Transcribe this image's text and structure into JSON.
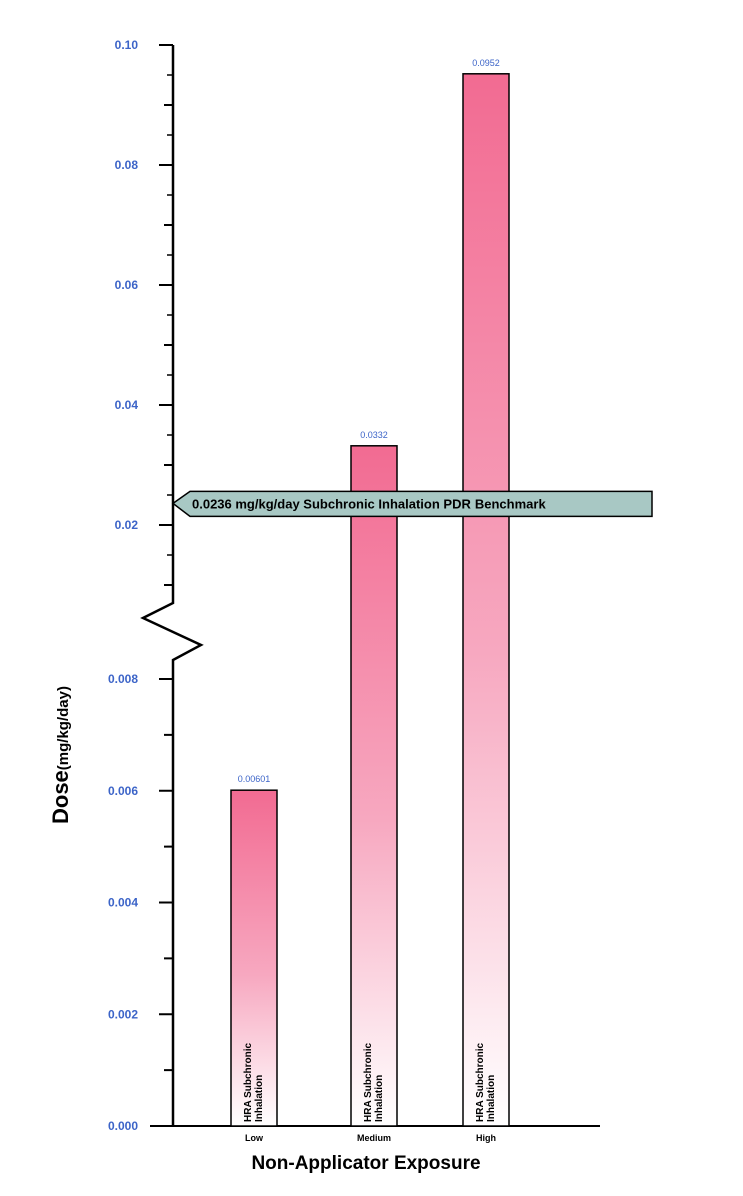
{
  "chart_data": {
    "type": "bar",
    "categories": [
      "Low",
      "Medium",
      "High"
    ],
    "values": [
      0.00601,
      0.0332,
      0.0952
    ],
    "value_labels": [
      "0.00601",
      "0.0332",
      "0.0952"
    ],
    "bar_text": [
      "HRA Subchronic Inhalation",
      "HRA Subchronic Inhalation",
      "HRA Subchronic Inhalation"
    ],
    "xlabel": "Non-Applicator Exposure",
    "ylabel": "Dose",
    "ylabel_unit": "(mg/kg/day)",
    "y_axis": {
      "broken": true,
      "lower_segment": {
        "range": [
          0,
          0.009
        ],
        "ticks": [
          "0.000",
          "0.002",
          "0.004",
          "0.006",
          "0.008"
        ]
      },
      "upper_segment": {
        "range": [
          0.009,
          0.1
        ],
        "ticks": [
          "0.02",
          "0.04",
          "0.06",
          "0.08",
          "0.10"
        ]
      }
    },
    "benchmark": {
      "value": 0.0236,
      "label": "0.0236 mg/kg/day Subchronic Inhalation PDR",
      "label_tail": "Benchmark"
    },
    "grid": false,
    "legend": "none",
    "colors": {
      "bar_top": "#f26b92",
      "bar_bottom": "#ffffff",
      "axis_tick_labels": "#3c64c8",
      "benchmark_arrow": "#a8c8c4"
    }
  }
}
